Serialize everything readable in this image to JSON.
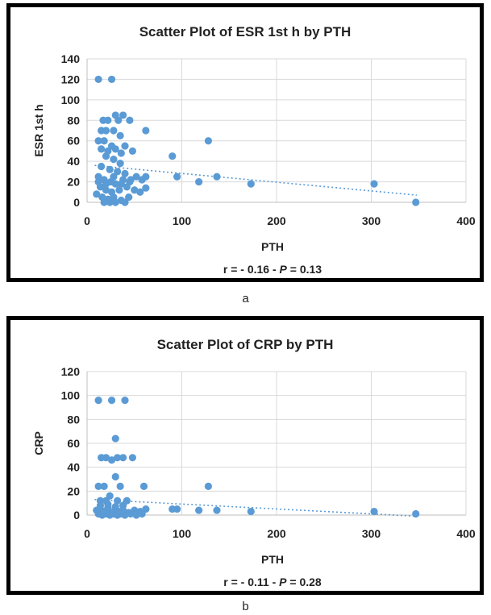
{
  "chart_data": [
    {
      "type": "scatter",
      "title": "Scatter Plot of ESR 1st h by PTH",
      "xlabel": "PTH",
      "ylabel": "ESR 1st h",
      "xlim": [
        0,
        400
      ],
      "ylim": [
        0,
        140
      ],
      "xticks": [
        "0",
        "100",
        "200",
        "300",
        "400"
      ],
      "yticks": [
        "0",
        "20",
        "40",
        "60",
        "80",
        "100",
        "120",
        "140"
      ],
      "stat_r": "r = - 0.16 - ",
      "stat_p": "P",
      "stat_pval": " = 0.13",
      "caption": "a",
      "grid": true,
      "marker_color": "#5b9bd5",
      "trendline": {
        "type": "linear",
        "x": [
          8,
          348
        ],
        "y": [
          36,
          7
        ]
      },
      "points": [
        [
          12,
          120
        ],
        [
          26,
          120
        ],
        [
          30,
          85
        ],
        [
          38,
          85
        ],
        [
          33,
          80
        ],
        [
          45,
          80
        ],
        [
          17,
          80
        ],
        [
          22,
          80
        ],
        [
          15,
          70
        ],
        [
          20,
          70
        ],
        [
          28,
          70
        ],
        [
          35,
          65
        ],
        [
          62,
          70
        ],
        [
          12,
          60
        ],
        [
          18,
          60
        ],
        [
          26,
          55
        ],
        [
          40,
          55
        ],
        [
          48,
          50
        ],
        [
          15,
          52
        ],
        [
          22,
          50
        ],
        [
          30,
          52
        ],
        [
          36,
          48
        ],
        [
          20,
          45
        ],
        [
          28,
          42
        ],
        [
          35,
          38
        ],
        [
          15,
          35
        ],
        [
          24,
          32
        ],
        [
          32,
          30
        ],
        [
          40,
          28
        ],
        [
          12,
          25
        ],
        [
          18,
          22
        ],
        [
          25,
          20
        ],
        [
          30,
          18
        ],
        [
          38,
          22
        ],
        [
          45,
          20
        ],
        [
          52,
          25
        ],
        [
          58,
          22
        ],
        [
          62,
          25
        ],
        [
          14,
          15
        ],
        [
          20,
          12
        ],
        [
          26,
          10
        ],
        [
          34,
          12
        ],
        [
          42,
          15
        ],
        [
          50,
          12
        ],
        [
          56,
          10
        ],
        [
          62,
          14
        ],
        [
          10,
          8
        ],
        [
          16,
          5
        ],
        [
          22,
          3
        ],
        [
          28,
          5
        ],
        [
          36,
          2
        ],
        [
          44,
          5
        ],
        [
          18,
          0
        ],
        [
          24,
          0
        ],
        [
          30,
          0
        ],
        [
          40,
          0
        ],
        [
          12,
          20
        ],
        [
          20,
          18
        ],
        [
          28,
          25
        ],
        [
          36,
          18
        ],
        [
          46,
          22
        ],
        [
          90,
          45
        ],
        [
          95,
          25
        ],
        [
          118,
          20
        ],
        [
          128,
          60
        ],
        [
          137,
          25
        ],
        [
          173,
          18
        ],
        [
          303,
          18
        ],
        [
          347,
          0
        ]
      ]
    },
    {
      "type": "scatter",
      "title": "Scatter Plot of CRP by PTH",
      "xlabel": "PTH",
      "ylabel": "CRP",
      "xlim": [
        0,
        400
      ],
      "ylim": [
        0,
        120
      ],
      "xticks": [
        "0",
        "100",
        "200",
        "300",
        "400"
      ],
      "yticks": [
        "0",
        "20",
        "40",
        "60",
        "80",
        "100",
        "120"
      ],
      "stat_r": "r = - 0.11 - ",
      "stat_p": "P",
      "stat_pval": " = 0.28",
      "caption": "b",
      "grid": true,
      "marker_color": "#5b9bd5",
      "trendline": {
        "type": "linear",
        "x": [
          8,
          348
        ],
        "y": [
          13,
          -1
        ]
      },
      "points": [
        [
          12,
          96
        ],
        [
          26,
          96
        ],
        [
          40,
          96
        ],
        [
          30,
          64
        ],
        [
          15,
          48
        ],
        [
          20,
          48
        ],
        [
          26,
          46
        ],
        [
          32,
          48
        ],
        [
          38,
          48
        ],
        [
          48,
          48
        ],
        [
          30,
          32
        ],
        [
          12,
          24
        ],
        [
          18,
          24
        ],
        [
          35,
          24
        ],
        [
          60,
          24
        ],
        [
          128,
          24
        ],
        [
          24,
          16
        ],
        [
          32,
          12
        ],
        [
          42,
          12
        ],
        [
          14,
          12
        ],
        [
          20,
          12
        ],
        [
          10,
          4
        ],
        [
          14,
          5
        ],
        [
          18,
          3
        ],
        [
          22,
          6
        ],
        [
          26,
          2
        ],
        [
          30,
          5
        ],
        [
          34,
          3
        ],
        [
          38,
          4
        ],
        [
          44,
          2
        ],
        [
          50,
          4
        ],
        [
          56,
          3
        ],
        [
          62,
          5
        ],
        [
          12,
          1
        ],
        [
          16,
          0
        ],
        [
          20,
          1
        ],
        [
          24,
          0
        ],
        [
          28,
          1
        ],
        [
          32,
          0
        ],
        [
          36,
          1
        ],
        [
          40,
          0
        ],
        [
          46,
          1
        ],
        [
          52,
          0
        ],
        [
          58,
          1
        ],
        [
          14,
          8
        ],
        [
          22,
          9
        ],
        [
          30,
          7
        ],
        [
          38,
          8
        ],
        [
          90,
          5
        ],
        [
          95,
          5
        ],
        [
          118,
          4
        ],
        [
          137,
          4
        ],
        [
          173,
          3
        ],
        [
          303,
          3
        ],
        [
          347,
          1
        ]
      ]
    }
  ]
}
